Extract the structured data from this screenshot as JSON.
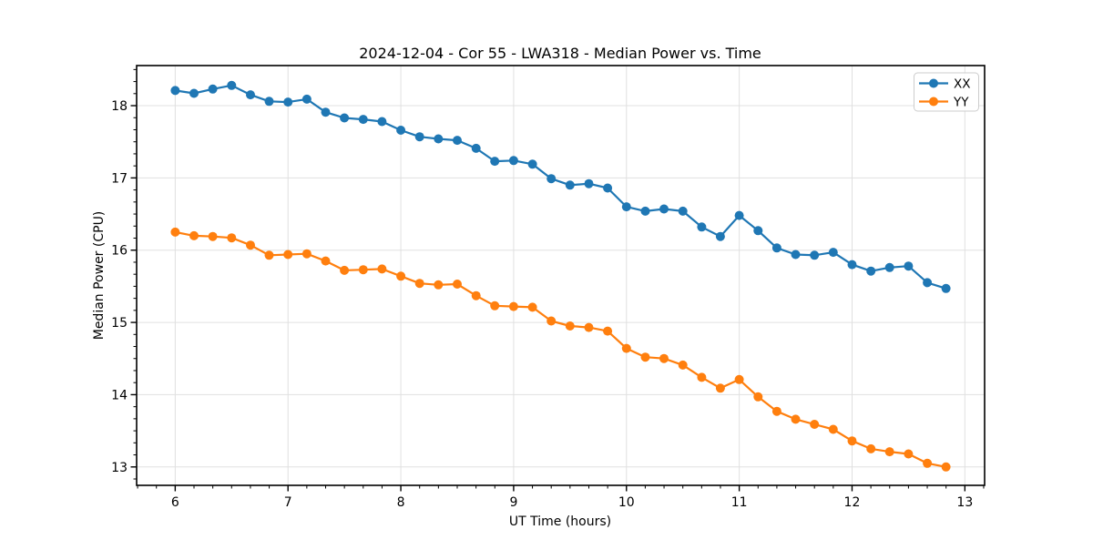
{
  "chart_data": {
    "type": "line",
    "title": "2024-12-04 - Cor 55 - LWA318 - Median Power vs. Time",
    "xlabel": "UT Time (hours)",
    "ylabel": "Median Power (CPU)",
    "xlim": [
      5.658,
      13.175
    ],
    "ylim": [
      12.745,
      18.555
    ],
    "xticks": [
      6,
      7,
      8,
      9,
      10,
      11,
      12,
      13
    ],
    "yticks": [
      13,
      14,
      15,
      16,
      17,
      18
    ],
    "minor_tick_step": 0.166667,
    "grid": true,
    "grid_color": "#e0e0e0",
    "legend_position": "upper right",
    "marker": "o",
    "x": [
      6.0,
      6.167,
      6.333,
      6.5,
      6.667,
      6.833,
      7.0,
      7.167,
      7.333,
      7.5,
      7.667,
      7.833,
      8.0,
      8.167,
      8.333,
      8.5,
      8.667,
      8.833,
      9.0,
      9.167,
      9.333,
      9.5,
      9.667,
      9.833,
      10.0,
      10.167,
      10.333,
      10.5,
      10.667,
      10.833,
      11.0,
      11.167,
      11.333,
      11.5,
      11.667,
      11.833,
      12.0,
      12.167,
      12.333,
      12.5,
      12.667,
      12.833
    ],
    "series": [
      {
        "name": "XX",
        "color": "#1f77b4",
        "values": [
          18.21,
          18.17,
          18.23,
          18.28,
          18.15,
          18.06,
          18.05,
          18.09,
          17.91,
          17.83,
          17.81,
          17.78,
          17.66,
          17.57,
          17.54,
          17.52,
          17.41,
          17.23,
          17.24,
          17.19,
          16.99,
          16.9,
          16.92,
          16.86,
          16.6,
          16.54,
          16.57,
          16.54,
          16.32,
          16.19,
          16.48,
          16.27,
          16.03,
          15.94,
          15.93,
          15.97,
          15.8,
          15.71,
          15.76,
          15.78,
          15.55,
          15.47
        ]
      },
      {
        "name": "YY",
        "color": "#ff7f0e",
        "values": [
          16.25,
          16.2,
          16.19,
          16.17,
          16.07,
          15.93,
          15.94,
          15.95,
          15.85,
          15.72,
          15.73,
          15.74,
          15.64,
          15.54,
          15.52,
          15.53,
          15.37,
          15.23,
          15.22,
          15.21,
          15.02,
          14.95,
          14.93,
          14.88,
          14.64,
          14.52,
          14.5,
          14.41,
          14.24,
          14.09,
          14.21,
          13.97,
          13.77,
          13.66,
          13.59,
          13.52,
          13.36,
          13.25,
          13.21,
          13.18,
          13.05,
          13.0
        ]
      }
    ]
  },
  "colors": {
    "background": "#ffffff",
    "spine": "#000000",
    "grid": "#e0e0e0"
  }
}
